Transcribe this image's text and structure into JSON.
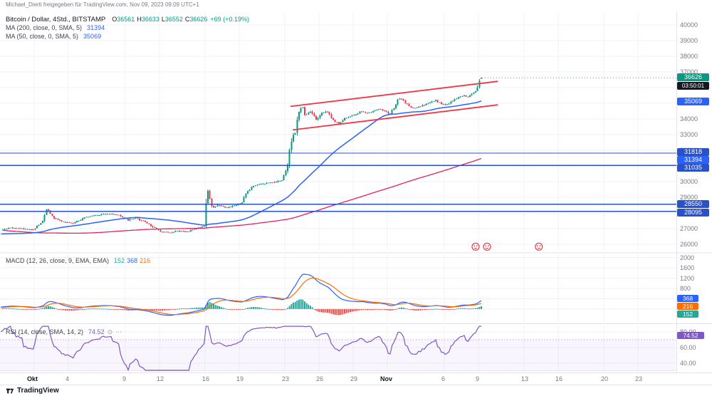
{
  "attribution": "Michael_Dierti freigegeben für TradingView.com, Nov 09, 2023 09:09 UTC+1",
  "legend": {
    "symbol": {
      "title": "Bitcoin / Dollar, 4Std., BITSTAMP",
      "o_label": "O",
      "o": "36561",
      "h_label": "H",
      "h": "36633",
      "l_label": "L",
      "l": "36552",
      "c_label": "C",
      "c": "36626",
      "change": "+69 (+0.19%)"
    },
    "ma200": {
      "title": "MA (200, close, 0, SMA, 5)",
      "value": "31394"
    },
    "ma50": {
      "title": "MA (50, close, 0, SMA, 5)",
      "value": "35069"
    },
    "macd": {
      "title": "MACD (12, 26, close, 9, EMA, EMA)",
      "hist": "152",
      "macd": "368",
      "signal": "216"
    },
    "rsi": {
      "title": "RSI (14, close, SMA, 14, 2)",
      "value": "74.52"
    }
  },
  "price_axis_ticks": [
    "40000",
    "39000",
    "38000",
    "37000",
    "36000",
    "35000",
    "34000",
    "33000",
    "32000",
    "31000",
    "30000",
    "29000",
    "28000",
    "27000",
    "26000"
  ],
  "macd_axis_ticks": [
    "2000",
    "1600",
    "1200",
    "800"
  ],
  "rsi_axis_ticks": [
    "80.00",
    "60.00",
    "40.00"
  ],
  "price_labels": {
    "last": "36626",
    "countdown": "03:50:01",
    "ma50": "35069",
    "ma200": "31394",
    "levels": [
      "31818",
      "31035",
      "28550",
      "28095"
    ]
  },
  "indicator_labels": {
    "macd": "368",
    "signal": "216",
    "hist": "152",
    "rsi": "74.52"
  },
  "time_axis": [
    {
      "label": "Okt",
      "day": 0,
      "month": true
    },
    {
      "label": "4",
      "day": 3
    },
    {
      "label": "9",
      "day": 8
    },
    {
      "label": "12",
      "day": 11
    },
    {
      "label": "16",
      "day": 15
    },
    {
      "label": "19",
      "day": 18
    },
    {
      "label": "23",
      "day": 22
    },
    {
      "label": "26",
      "day": 25
    },
    {
      "label": "29",
      "day": 28
    },
    {
      "label": "Nov",
      "day": 31,
      "month": true
    },
    {
      "label": "6",
      "day": 36
    },
    {
      "label": "9",
      "day": 39
    },
    {
      "label": "13",
      "day": 43
    },
    {
      "label": "16",
      "day": 46
    },
    {
      "label": "20",
      "day": 50
    },
    {
      "label": "23",
      "day": 53
    }
  ],
  "footer": {
    "logo_text": "TradingView"
  },
  "colors": {
    "up": "#089981",
    "down": "#f23645",
    "ma50": "#2962ff",
    "ma200": "#e91e63",
    "channel": "#f23645",
    "level": "#2a52c8",
    "macd_line": "#2962ff",
    "signal_line": "#ff6d00",
    "hist_pos": "#26a69a",
    "hist_neg": "#ef5350",
    "rsi": "#7e57c2",
    "grid": "#eef2f8",
    "last_price_bg": "#089981",
    "countdown_bg": "#141823",
    "sticker": "#f23645",
    "axis_text": "#787b86"
  },
  "chart_data": {
    "type": "candlestick",
    "title": "Bitcoin / Dollar, 4Std., BITSTAMP",
    "interval_hours": 4,
    "day0": "2023-10-01",
    "price_axis_range": [
      26000,
      40000
    ],
    "last_ohlc": {
      "open": 36561,
      "high": 36633,
      "low": 36552,
      "close": 36626
    },
    "price_path_anchors": [
      [
        -36,
        29100
      ],
      [
        -30,
        27600
      ],
      [
        -26,
        26000
      ],
      [
        -22,
        26300
      ],
      [
        -18,
        26550
      ],
      [
        -14,
        26700
      ],
      [
        -10,
        26900
      ],
      [
        -7,
        26350
      ],
      [
        -4,
        26750
      ],
      [
        -2,
        27050
      ],
      [
        0,
        26950
      ],
      [
        0.8,
        27400
      ],
      [
        1.2,
        28250
      ],
      [
        1.7,
        27700
      ],
      [
        2.5,
        27450
      ],
      [
        3.5,
        27350
      ],
      [
        4.5,
        27700
      ],
      [
        5.5,
        27850
      ],
      [
        6.5,
        27950
      ],
      [
        7.5,
        27900
      ],
      [
        8.3,
        27550
      ],
      [
        9,
        27650
      ],
      [
        9.8,
        27450
      ],
      [
        10.5,
        27050
      ],
      [
        11.2,
        26820
      ],
      [
        12,
        26750
      ],
      [
        12.7,
        26850
      ],
      [
        13.5,
        26800
      ],
      [
        14.5,
        27050
      ],
      [
        15,
        27150
      ],
      [
        15.3,
        29600
      ],
      [
        15.6,
        28300
      ],
      [
        16.2,
        28500
      ],
      [
        17,
        28350
      ],
      [
        17.8,
        28500
      ],
      [
        18.3,
        28650
      ],
      [
        18.8,
        29350
      ],
      [
        19.3,
        29700
      ],
      [
        20,
        29850
      ],
      [
        21,
        29950
      ],
      [
        21.8,
        30050
      ],
      [
        22.3,
        30900
      ],
      [
        22.7,
        32900
      ],
      [
        23,
        33150
      ],
      [
        23.3,
        34350
      ],
      [
        23.6,
        34850
      ],
      [
        23.9,
        34250
      ],
      [
        24.3,
        34550
      ],
      [
        24.8,
        33950
      ],
      [
        25.3,
        34350
      ],
      [
        25.8,
        34500
      ],
      [
        26.3,
        33950
      ],
      [
        26.8,
        33700
      ],
      [
        27.3,
        34000
      ],
      [
        27.8,
        34150
      ],
      [
        28.3,
        34300
      ],
      [
        28.8,
        34500
      ],
      [
        29.3,
        34350
      ],
      [
        29.8,
        34450
      ],
      [
        30.3,
        34650
      ],
      [
        30.8,
        34500
      ],
      [
        31.3,
        34300
      ],
      [
        31.7,
        34750
      ],
      [
        32.1,
        35350
      ],
      [
        32.5,
        35150
      ],
      [
        33,
        34800
      ],
      [
        33.5,
        34700
      ],
      [
        34.2,
        34850
      ],
      [
        34.8,
        35050
      ],
      [
        35.3,
        35200
      ],
      [
        35.8,
        34950
      ],
      [
        36.3,
        34900
      ],
      [
        36.8,
        35150
      ],
      [
        37.3,
        35350
      ],
      [
        37.8,
        35500
      ],
      [
        38.2,
        35400
      ],
      [
        38.6,
        35650
      ],
      [
        38.9,
        35800
      ],
      [
        39.1,
        36250
      ],
      [
        39.25,
        36500
      ],
      [
        39.375,
        36626
      ]
    ],
    "levels": [
      31818,
      31035,
      28550,
      28095
    ],
    "channel": {
      "upper": [
        [
          22.5,
          34800
        ],
        [
          40.7,
          36400
        ]
      ],
      "lower": [
        [
          22.7,
          33300
        ],
        [
          40.7,
          34900
        ]
      ]
    },
    "moving_averages": {
      "ma50_last": 35069,
      "ma200_last": 31394
    },
    "macd": {
      "last_macd": 368,
      "last_signal": 216,
      "last_hist": 152,
      "axis_range": [
        -500,
        2100
      ]
    },
    "rsi": {
      "last": 74.52,
      "axis_range": [
        30,
        88
      ],
      "bands": [
        70,
        30
      ]
    },
    "annotations": [
      {
        "type": "emoji-sticker",
        "day": 38.75,
        "price": 25850
      },
      {
        "type": "emoji-sticker",
        "day": 39.75,
        "price": 25850
      },
      {
        "type": "emoji-sticker",
        "day": 44.3,
        "price": 25850
      }
    ]
  }
}
